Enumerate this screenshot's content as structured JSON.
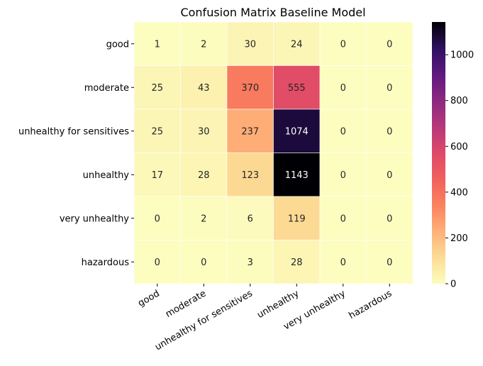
{
  "chart_data": {
    "type": "heatmap",
    "title": "Confusion Matrix Baseline Model",
    "xlabel": "",
    "ylabel": "",
    "row_labels": [
      "good",
      "moderate",
      "unhealthy for sensitives",
      "unhealthy",
      "very unhealthy",
      "hazardous"
    ],
    "col_labels": [
      "good",
      "moderate",
      "unhealthy for sensitives",
      "unhealthy",
      "very unhealthy",
      "hazardous"
    ],
    "values": [
      [
        1,
        2,
        30,
        24,
        0,
        0
      ],
      [
        25,
        43,
        370,
        555,
        0,
        0
      ],
      [
        25,
        30,
        237,
        1074,
        0,
        0
      ],
      [
        17,
        28,
        123,
        1143,
        0,
        0
      ],
      [
        0,
        2,
        6,
        119,
        0,
        0
      ],
      [
        0,
        0,
        3,
        28,
        0,
        0
      ]
    ],
    "colormap": "magma_r",
    "vmin": 0,
    "vmax": 1143,
    "colorbar_ticks": [
      0,
      200,
      400,
      600,
      800,
      1000
    ],
    "grid": false,
    "colorbar_placement": "right"
  }
}
